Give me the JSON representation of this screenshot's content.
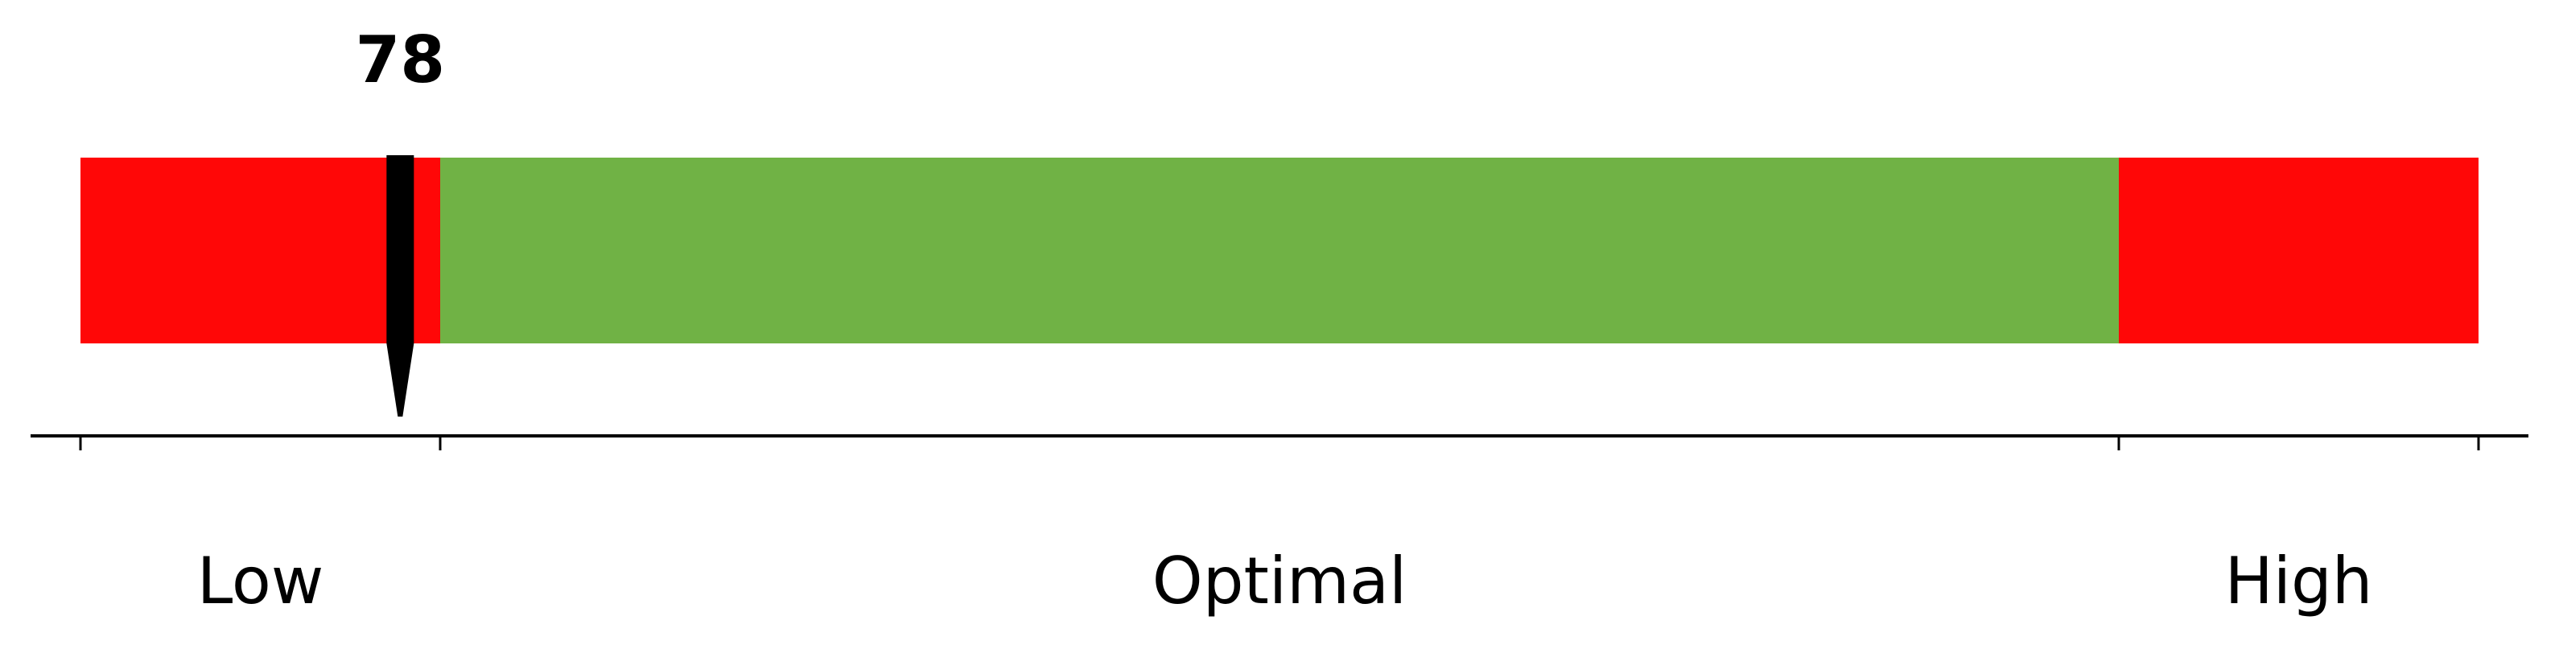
{
  "chart_data": {
    "type": "bar",
    "value": 78,
    "value_label": "78",
    "xlim": [
      70,
      130
    ],
    "zones": [
      {
        "label": "Low",
        "from": 70,
        "to": 79,
        "color": "#ff0707"
      },
      {
        "label": "Optimal",
        "from": 79,
        "to": 121,
        "color": "#70b245"
      },
      {
        "label": "High",
        "from": 121,
        "to": 130,
        "color": "#ff0707"
      }
    ],
    "ticks": [
      70,
      79,
      121,
      130
    ],
    "marker_color": "#000000",
    "axis_color": "#000000"
  }
}
